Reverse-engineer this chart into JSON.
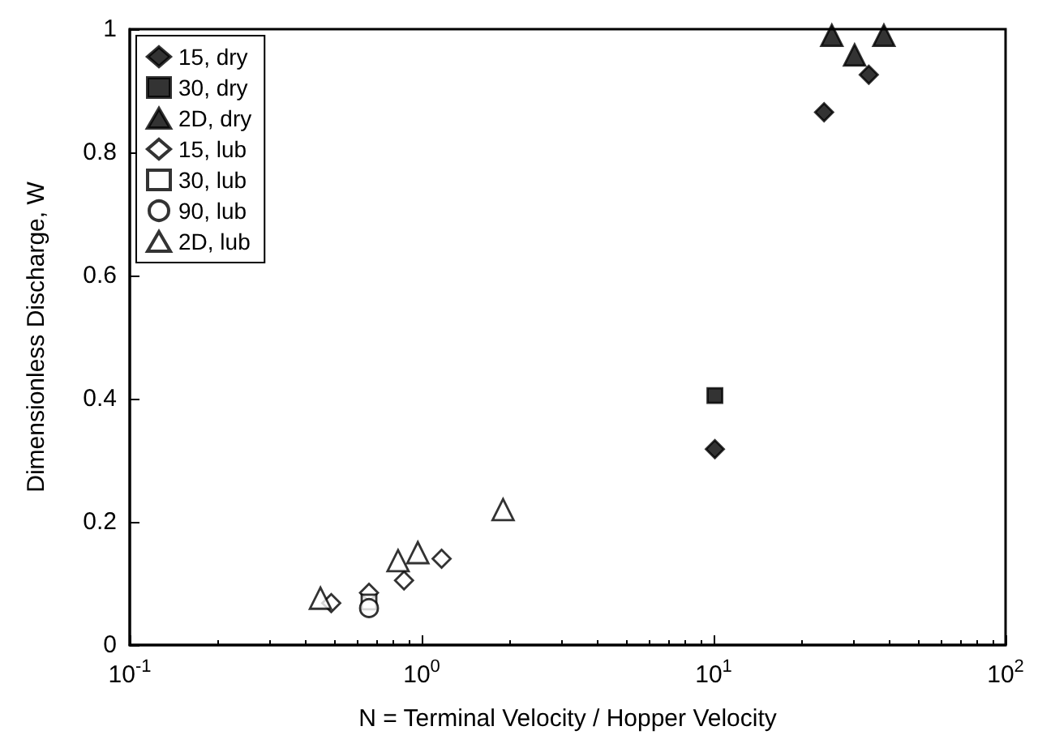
{
  "chart_data": {
    "type": "scatter",
    "xlabel": "N = Terminal Velocity / Hopper Velocity",
    "ylabel": "Dimensionless Discharge, W",
    "log": "x",
    "xlim": [
      0.1,
      100
    ],
    "xticks": [
      {
        "value": 0.1,
        "label": "10$^{-1}$"
      },
      {
        "value": 1,
        "label": "10$^{0}$"
      },
      {
        "value": 10,
        "label": "10$^{1}$"
      },
      {
        "value": 100,
        "label": "10$^{2}$"
      }
    ],
    "ylim": [
      0,
      1
    ],
    "yticks": [
      0,
      0.2,
      0.4,
      0.6,
      0.8,
      1
    ],
    "grid": false,
    "legend": "top left",
    "series": [
      {
        "name": "15, dry",
        "color": "#000000",
        "marker": "diamond",
        "x": [
          10.1,
          23.9,
          34
        ],
        "values": [
          0.318,
          0.865,
          0.926
        ]
      },
      {
        "name": "30, dry",
        "color": "#000000",
        "marker": "square",
        "x": [
          10.1
        ],
        "values": [
          0.405
        ]
      },
      {
        "name": "2D, dry",
        "color": "#000000",
        "marker": "triangle",
        "x": [
          25.4,
          30.4,
          38.3
        ],
        "values": [
          0.99,
          0.958,
          0.99
        ]
      },
      {
        "name": "15, lub",
        "color": "#ffffff",
        "marker": "diamond",
        "x": [
          0.49,
          0.66,
          0.87,
          1.17
        ],
        "values": [
          0.068,
          0.085,
          0.105,
          0.14
        ]
      },
      {
        "name": "30, lub",
        "color": "#ffffff",
        "marker": "square",
        "x": [
          0.66
        ],
        "values": [
          0.07
        ]
      },
      {
        "name": "90, lub",
        "color": "#ffffff",
        "marker": "circle",
        "x": [
          0.66
        ],
        "values": [
          0.06
        ]
      },
      {
        "name": "2D, lub",
        "color": "#ffffff",
        "marker": "triangle",
        "x": [
          0.45,
          0.83,
          0.97,
          1.9
        ],
        "values": [
          0.076,
          0.137,
          0.15,
          0.22
        ]
      }
    ]
  }
}
